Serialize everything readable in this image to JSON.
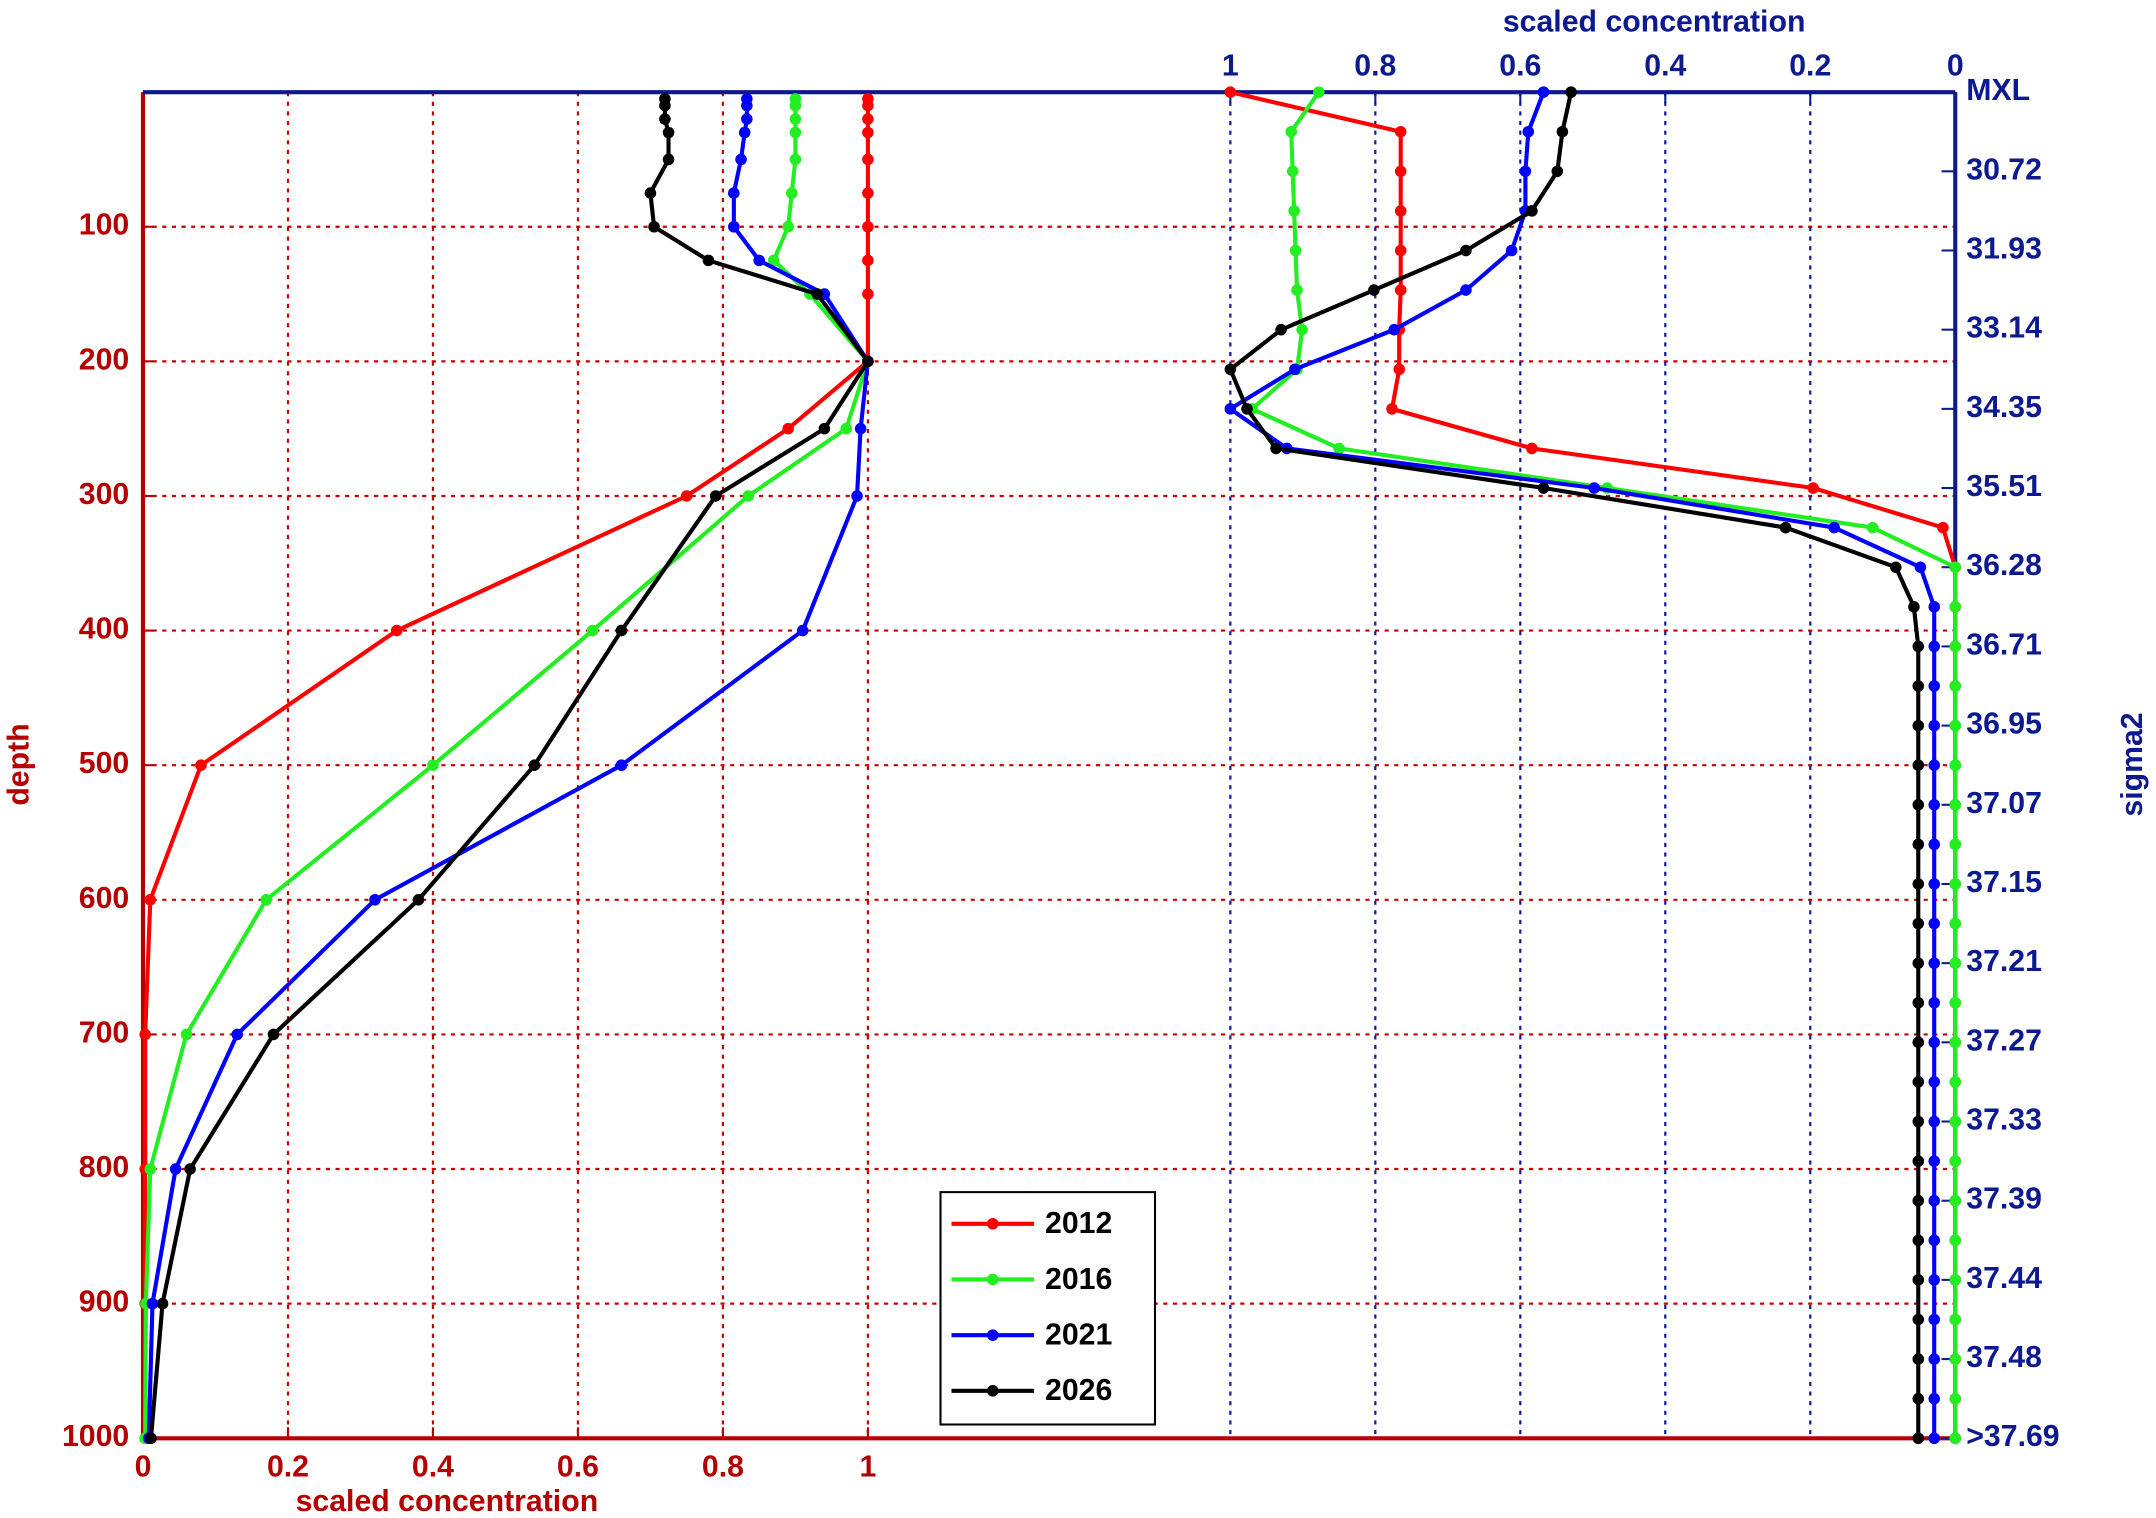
{
  "chart_data": [
    {
      "type": "line",
      "x_label": "scaled concentration",
      "y_label": "depth",
      "x_axis": "bottom",
      "y_axis": "left",
      "axis_color": "#b40000",
      "grid": "both",
      "grid_color": "#c80000",
      "xlim": [
        0,
        2.5
      ],
      "xticks": [
        0,
        0.2,
        0.4,
        0.6,
        0.8,
        1
      ],
      "ylim": [
        1000,
        0
      ],
      "yticks": [
        100,
        200,
        300,
        400,
        500,
        600,
        700,
        800,
        900,
        1000
      ],
      "legend": "lower center",
      "y": [
        5,
        10,
        20,
        30,
        50,
        75,
        100,
        125,
        150,
        200,
        250,
        300,
        400,
        500,
        600,
        700,
        800,
        900,
        1000
      ],
      "series": [
        {
          "name": "2012",
          "color": "#ff0000",
          "values": [
            1,
            1,
            1,
            1,
            1,
            1,
            1,
            1,
            1,
            1,
            0.89,
            0.75,
            0.35,
            0.08,
            0.01,
            0.003,
            0.003,
            0.003,
            0.003
          ]
        },
        {
          "name": "2016",
          "color": "#22ee22",
          "values": [
            0.9,
            0.9,
            0.9,
            0.9,
            0.9,
            0.895,
            0.89,
            0.87,
            0.92,
            1,
            0.97,
            0.835,
            0.62,
            0.4,
            0.17,
            0.06,
            0.01,
            0.004,
            0.003
          ]
        },
        {
          "name": "2021",
          "color": "#0000ff",
          "values": [
            0.833,
            0.833,
            0.833,
            0.83,
            0.825,
            0.815,
            0.815,
            0.85,
            0.94,
            1,
            0.99,
            0.985,
            0.91,
            0.66,
            0.32,
            0.13,
            0.045,
            0.013,
            0.008
          ]
        },
        {
          "name": "2026",
          "color": "#000000",
          "values": [
            0.72,
            0.72,
            0.72,
            0.725,
            0.725,
            0.7,
            0.705,
            0.78,
            0.93,
            1,
            0.94,
            0.79,
            0.66,
            0.54,
            0.38,
            0.18,
            0.065,
            0.027,
            0.011
          ]
        }
      ]
    },
    {
      "type": "line",
      "x_label": "scaled concentration",
      "y_label": "sigma2",
      "x_axis": "top",
      "y_axis": "right",
      "axis_color": "#0d1a8f",
      "grid": "x",
      "grid_color": "#0d1a9f",
      "xlim": [
        2.5,
        0
      ],
      "xticks": [
        1,
        0.8,
        0.6,
        0.4,
        0.2,
        0
      ],
      "ylim": [
        17,
        0
      ],
      "yticks": [
        {
          "value": 0,
          "label": "MXL"
        },
        {
          "value": 1,
          "label": "30.72"
        },
        {
          "value": 2,
          "label": "31.93"
        },
        {
          "value": 3,
          "label": "33.14"
        },
        {
          "value": 4,
          "label": "34.35"
        },
        {
          "value": 5,
          "label": "35.51"
        },
        {
          "value": 6,
          "label": "36.28"
        },
        {
          "value": 7,
          "label": "36.71"
        },
        {
          "value": 8,
          "label": "36.95"
        },
        {
          "value": 9,
          "label": "37.07"
        },
        {
          "value": 10,
          "label": "37.15"
        },
        {
          "value": 11,
          "label": "37.21"
        },
        {
          "value": 12,
          "label": "37.27"
        },
        {
          "value": 13,
          "label": "37.33"
        },
        {
          "value": 14,
          "label": "37.39"
        },
        {
          "value": 15,
          "label": "37.44"
        },
        {
          "value": 16,
          "label": "37.48"
        },
        {
          "value": 17,
          "label": ">37.69"
        }
      ],
      "y": [
        0,
        0.5,
        1,
        1.5,
        2,
        2.5,
        3,
        3.5,
        4,
        4.5,
        5,
        5.5,
        6,
        6.5,
        7,
        7.5,
        8,
        8.5,
        9,
        9.5,
        10,
        10.5,
        11,
        11.5,
        12,
        12.5,
        13,
        13.5,
        14,
        14.5,
        15,
        15.5,
        16,
        16.5,
        17
      ],
      "series": [
        {
          "color": "#ff0000",
          "values": [
            1,
            0.765,
            0.765,
            0.765,
            0.765,
            0.765,
            0.767,
            0.767,
            0.777,
            0.584,
            0.196,
            0.017,
            0,
            0,
            0,
            0,
            0,
            0,
            0,
            0,
            0,
            0,
            0,
            0,
            0,
            0,
            0,
            0,
            0,
            0,
            0,
            0,
            0,
            0,
            0
          ]
        },
        {
          "color": "#22ee22",
          "values": [
            0.878,
            0.916,
            0.914,
            0.912,
            0.91,
            0.908,
            0.901,
            0.908,
            0.97,
            0.85,
            0.48,
            0.114,
            0,
            0,
            0,
            0,
            0,
            0,
            0,
            0,
            0,
            0,
            0,
            0,
            0,
            0,
            0,
            0,
            0,
            0,
            0,
            0,
            0,
            0,
            0
          ]
        },
        {
          "color": "#0000ff",
          "values": [
            0.568,
            0.589,
            0.593,
            0.593,
            0.612,
            0.675,
            0.774,
            0.911,
            1,
            0.922,
            0.498,
            0.167,
            0.048,
            0.029,
            0.029,
            0.029,
            0.029,
            0.029,
            0.029,
            0.029,
            0.029,
            0.029,
            0.029,
            0.029,
            0.029,
            0.029,
            0.029,
            0.029,
            0.029,
            0.029,
            0.029,
            0.029,
            0.029,
            0.029,
            0.029
          ]
        },
        {
          "color": "#000000",
          "values": [
            0.53,
            0.542,
            0.549,
            0.584,
            0.675,
            0.802,
            0.93,
            1,
            0.977,
            0.937,
            0.568,
            0.234,
            0.082,
            0.057,
            0.051,
            0.051,
            0.051,
            0.051,
            0.051,
            0.051,
            0.051,
            0.051,
            0.051,
            0.051,
            0.051,
            0.051,
            0.051,
            0.051,
            0.051,
            0.051,
            0.051,
            0.051,
            0.051,
            0.051,
            0.051
          ]
        }
      ]
    }
  ]
}
